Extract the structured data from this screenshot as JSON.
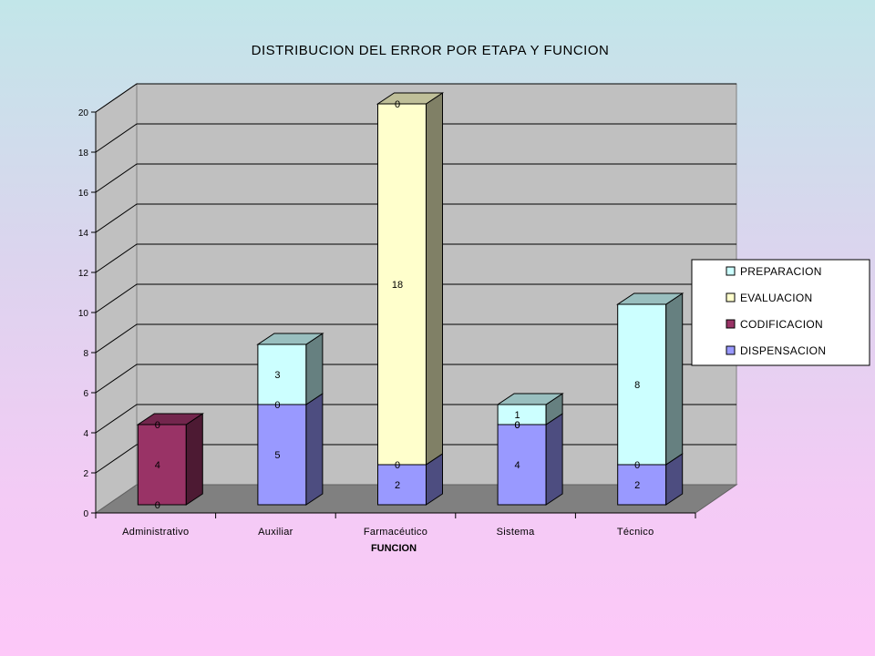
{
  "chart_data": {
    "type": "bar",
    "stacked": true,
    "three_d": true,
    "title": "DISTRIBUCION DEL ERROR POR ETAPA Y FUNCION",
    "xlabel": "FUNCION",
    "ylabel": "",
    "ylim": [
      0,
      20
    ],
    "yticks": [
      "0",
      "2",
      "4",
      "6",
      "8",
      "10",
      "12",
      "14",
      "16",
      "18",
      "20"
    ],
    "categories": [
      "Administrativo",
      "Auxiliar",
      "Farmacéutico",
      "Sistema",
      "Técnico"
    ],
    "series": [
      {
        "name": "DISPENSACION",
        "values": [
          0,
          5,
          2,
          4,
          2
        ],
        "labels": [
          "0",
          "5",
          "2",
          "4",
          "2"
        ],
        "color": "#9999ff"
      },
      {
        "name": "CODIFICACION",
        "values": [
          4,
          0,
          0,
          0,
          0
        ],
        "labels": [
          "4",
          "0",
          "0",
          "0",
          "0"
        ],
        "color": "#993366"
      },
      {
        "name": "EVALUACION",
        "values": [
          0,
          0,
          18,
          0,
          0
        ],
        "labels": [
          "0",
          "",
          "18",
          "0",
          ""
        ],
        "color": "#ffffcc"
      },
      {
        "name": "PREPARACION",
        "values": [
          0,
          3,
          0,
          1,
          8
        ],
        "labels": [
          "",
          "3",
          "0",
          "1",
          "8"
        ],
        "color": "#ccffff"
      }
    ],
    "grid": true,
    "legend": "right",
    "colors": {
      "wall": "#c0c0c0",
      "floor": "#808080"
    }
  }
}
